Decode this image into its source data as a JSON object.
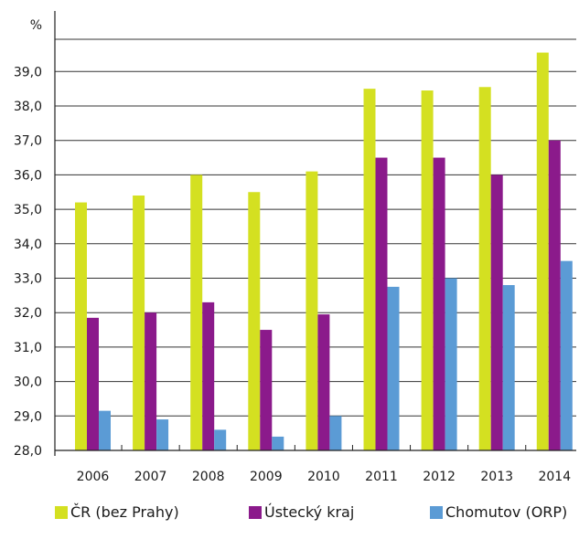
{
  "chart_data": {
    "type": "bar",
    "ylabel": "%",
    "ylim": [
      28,
      40
    ],
    "yticks": [
      "28,0",
      "29,0",
      "30,0",
      "31,0",
      "32,0",
      "33,0",
      "34,0",
      "35,0",
      "36,0",
      "37,0",
      "38,0",
      "39,0"
    ],
    "grid": true,
    "categories": [
      "2006",
      "2007",
      "2008",
      "2009",
      "2010",
      "2011",
      "2012",
      "2013",
      "2014"
    ],
    "series": [
      {
        "name": "ČR (bez Prahy)",
        "color": "#d4e021",
        "values": [
          35.2,
          35.4,
          36.0,
          35.5,
          36.1,
          38.5,
          38.45,
          38.55,
          39.55
        ]
      },
      {
        "name": "Ústecký kraj",
        "color": "#8b1a8b",
        "values": [
          31.85,
          32.0,
          32.3,
          31.5,
          31.95,
          36.5,
          36.5,
          36.0,
          37.0
        ]
      },
      {
        "name": "Chomutov (ORP)",
        "color": "#5b9bd5",
        "values": [
          29.15,
          28.9,
          28.6,
          28.4,
          29.0,
          32.75,
          33.0,
          32.8,
          33.5
        ]
      }
    ],
    "legend_position": "bottom"
  }
}
